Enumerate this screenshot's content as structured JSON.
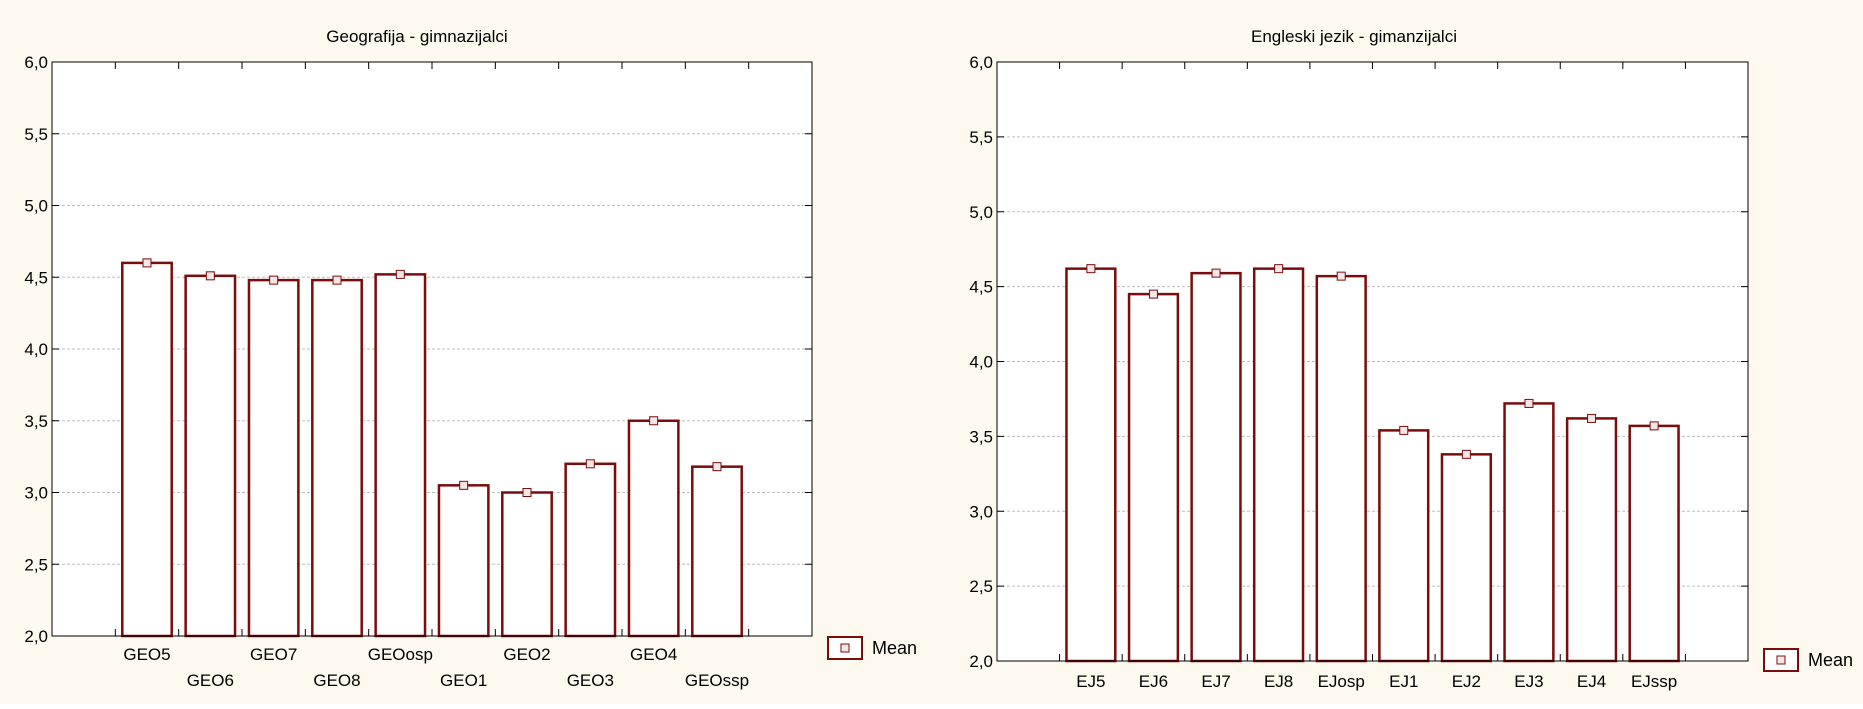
{
  "colors": {
    "background": "#fdf9ee",
    "plot_area": "#ffffff",
    "bar_stroke": "#7b0c0c",
    "bar_fill": "#ffffff",
    "gridline": "#bdbdbd",
    "marker_fill": "#f3e6e6"
  },
  "chart_data": [
    {
      "type": "bar",
      "title": "Geografija - gimnazijalci",
      "xlabel": "",
      "ylabel": "",
      "ylim": [
        2.0,
        6.0
      ],
      "yticks": [
        "2,0",
        "2,5",
        "3,0",
        "3,5",
        "4,0",
        "4,5",
        "5,0",
        "5,5",
        "6,0"
      ],
      "categories": [
        "GEO5",
        "GEO6",
        "GEO7",
        "GEO8",
        "GEOosp",
        "GEO1",
        "GEO2",
        "GEO3",
        "GEO4",
        "GEOssp"
      ],
      "series": [
        {
          "name": "Mean",
          "values": [
            4.6,
            4.51,
            4.48,
            4.48,
            4.52,
            3.05,
            3.0,
            3.2,
            3.5,
            3.18
          ]
        }
      ],
      "legend": {
        "label": "Mean",
        "placement": "bottom-right"
      },
      "grid": true
    },
    {
      "type": "bar",
      "title": "Engleski jezik - gimanzijalci",
      "xlabel": "",
      "ylabel": "",
      "ylim": [
        2.0,
        6.0
      ],
      "yticks": [
        "2,0",
        "2,5",
        "3,0",
        "3,5",
        "4,0",
        "4,5",
        "5,0",
        "5,5",
        "6,0"
      ],
      "categories": [
        "EJ5",
        "EJ6",
        "EJ7",
        "EJ8",
        "EJosp",
        "EJ1",
        "EJ2",
        "EJ3",
        "EJ4",
        "EJssp"
      ],
      "series": [
        {
          "name": "Mean",
          "values": [
            4.62,
            4.45,
            4.59,
            4.62,
            4.57,
            3.54,
            3.38,
            3.72,
            3.62,
            3.57
          ]
        }
      ],
      "legend": {
        "label": "Mean",
        "placement": "bottom-right"
      },
      "grid": true
    }
  ]
}
